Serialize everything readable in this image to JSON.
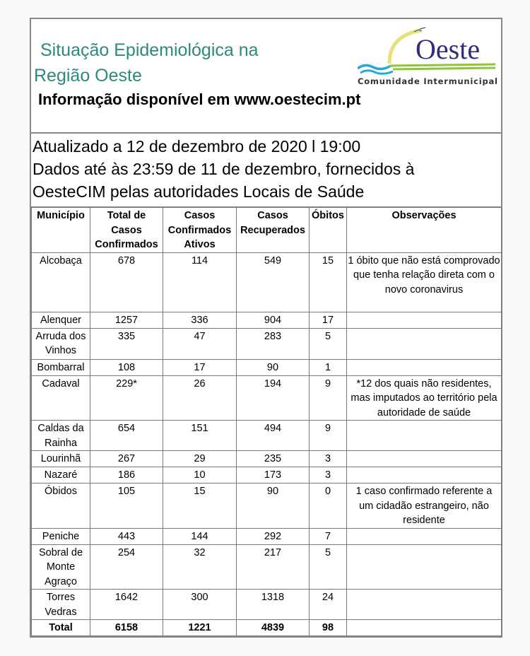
{
  "header": {
    "title_line1": "Situação Epidemiológica na",
    "title_line2": "Região Oeste",
    "info": "Informação disponível em www.oestecim.pt",
    "logo": {
      "name": "Oeste",
      "subtitle": "Comunidade Intermunicipal",
      "colors": {
        "navy": "#2d2f7a",
        "sun": "#e6e27a",
        "wave": "#2aa6d9",
        "green": "#8cc63f"
      }
    }
  },
  "update": {
    "line1": "Atualizado a 12 de dezembro de 2020 l 19:00",
    "line2": "Dados até às 23:59 de 11 de dezembro, fornecidos à",
    "line3": "OesteCIM pelas autoridades Locais de Saúde"
  },
  "table": {
    "columns": [
      "Município",
      "Total de Casos Confirmados",
      "Casos Confirmados Ativos",
      "Casos Recuperados",
      "Óbitos",
      "Observações"
    ],
    "rows": [
      [
        "Alcobaça",
        "678",
        "114",
        "549",
        "15",
        "1 óbito que não está comprovado que tenha relação direta com o novo coronavirus"
      ],
      [
        "Alenquer",
        "1257",
        "336",
        "904",
        "17",
        ""
      ],
      [
        "Arruda dos Vinhos",
        "335",
        "47",
        "283",
        "5",
        ""
      ],
      [
        "Bombarral",
        "108",
        "17",
        "90",
        "1",
        ""
      ],
      [
        "Cadaval",
        "229*",
        "26",
        "194",
        "9",
        "*12 dos quais não residentes, mas imputados ao território pela autoridade de saúde"
      ],
      [
        "Caldas da Rainha",
        "654",
        "151",
        "494",
        "9",
        ""
      ],
      [
        "Lourinhã",
        "267",
        "29",
        "235",
        "3",
        ""
      ],
      [
        "Nazaré",
        "186",
        "10",
        "173",
        "3",
        ""
      ],
      [
        "Óbidos",
        "105",
        "15",
        "90",
        "0",
        "1 caso confirmado referente a um cidadão estrangeiro, não residente"
      ],
      [
        "Peniche",
        "443",
        "144",
        "292",
        "7",
        ""
      ],
      [
        "Sobral de Monte Agraço",
        "254",
        "32",
        "217",
        "5",
        ""
      ],
      [
        "Torres Vedras",
        "1642",
        "300",
        "1318",
        "24",
        ""
      ]
    ],
    "total": [
      "Total",
      "6158",
      "1221",
      "4839",
      "98",
      ""
    ]
  }
}
